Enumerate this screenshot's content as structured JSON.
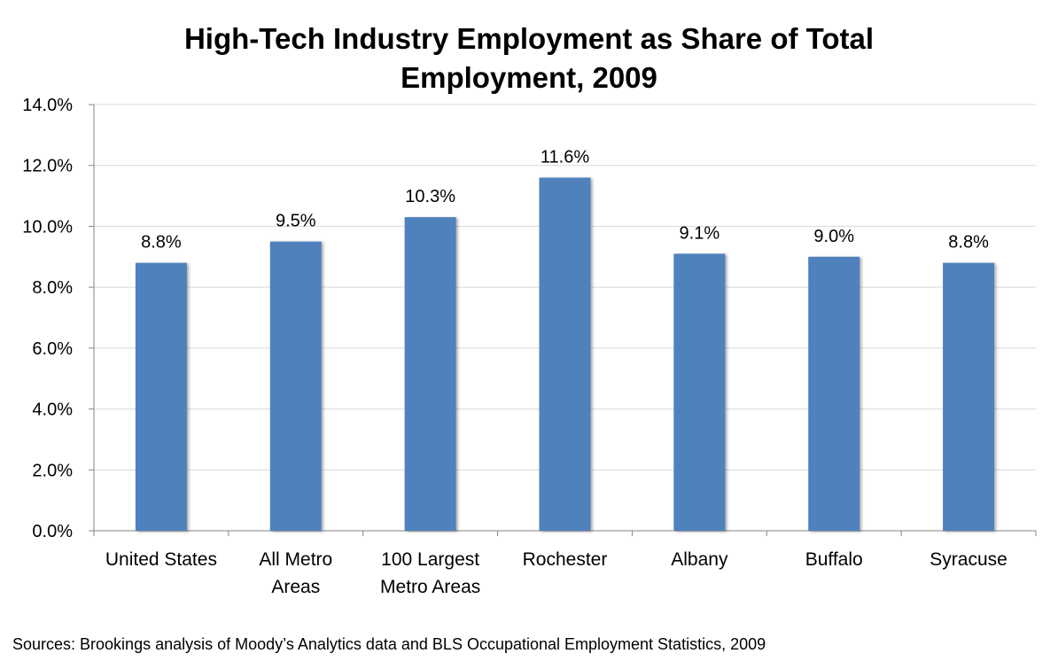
{
  "chart_data": {
    "type": "bar",
    "title_lines": [
      "High-Tech Industry Employment as Share of Total",
      "Employment, 2009"
    ],
    "categories": [
      [
        "United States"
      ],
      [
        "All Metro",
        "Areas"
      ],
      [
        "100 Largest",
        "Metro Areas"
      ],
      [
        "Rochester"
      ],
      [
        "Albany"
      ],
      [
        "Buffalo"
      ],
      [
        "Syracuse"
      ]
    ],
    "values": [
      8.8,
      9.5,
      10.3,
      11.6,
      9.1,
      9.0,
      8.8
    ],
    "data_labels": [
      "8.8%",
      "9.5%",
      "10.3%",
      "11.6%",
      "9.1%",
      "9.0%",
      "8.8%"
    ],
    "yticks": [
      "0.0%",
      "2.0%",
      "4.0%",
      "6.0%",
      "8.0%",
      "10.0%",
      "12.0%",
      "14.0%"
    ],
    "ylim": [
      0,
      14
    ],
    "xlabel": "",
    "ylabel": "",
    "grid": true,
    "legend": "none",
    "bar_color": "#4F81BD",
    "grid_color": "#D9D9D9"
  },
  "source": "Sources: Brookings analysis of Moody’s Analytics data and BLS Occupational Employment Statistics, 2009"
}
